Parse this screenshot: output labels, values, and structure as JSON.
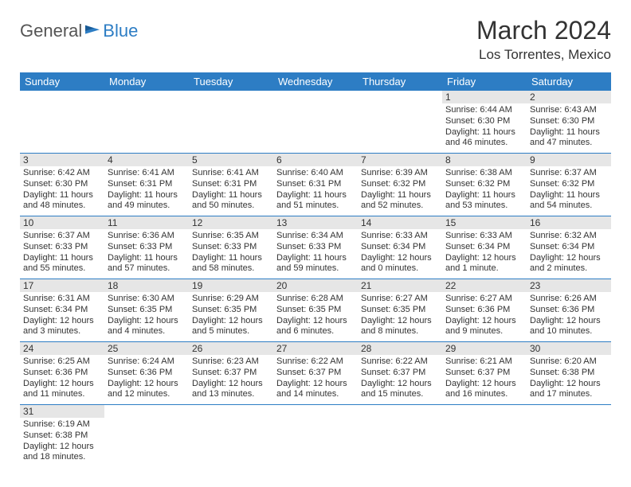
{
  "logo": {
    "part1": "General",
    "part2": "Blue"
  },
  "title": "March 2024",
  "location": "Los Torrentes, Mexico",
  "colors": {
    "header_bg": "#2d7dc4",
    "header_text": "#ffffff",
    "daynum_bg": "#e6e6e6",
    "row_border": "#2d7dc4",
    "text": "#333333",
    "background": "#ffffff"
  },
  "weekdays": [
    "Sunday",
    "Monday",
    "Tuesday",
    "Wednesday",
    "Thursday",
    "Friday",
    "Saturday"
  ],
  "weeks": [
    [
      null,
      null,
      null,
      null,
      null,
      {
        "d": "1",
        "sr": "Sunrise: 6:44 AM",
        "ss": "Sunset: 6:30 PM",
        "dl1": "Daylight: 11 hours",
        "dl2": "and 46 minutes."
      },
      {
        "d": "2",
        "sr": "Sunrise: 6:43 AM",
        "ss": "Sunset: 6:30 PM",
        "dl1": "Daylight: 11 hours",
        "dl2": "and 47 minutes."
      }
    ],
    [
      {
        "d": "3",
        "sr": "Sunrise: 6:42 AM",
        "ss": "Sunset: 6:30 PM",
        "dl1": "Daylight: 11 hours",
        "dl2": "and 48 minutes."
      },
      {
        "d": "4",
        "sr": "Sunrise: 6:41 AM",
        "ss": "Sunset: 6:31 PM",
        "dl1": "Daylight: 11 hours",
        "dl2": "and 49 minutes."
      },
      {
        "d": "5",
        "sr": "Sunrise: 6:41 AM",
        "ss": "Sunset: 6:31 PM",
        "dl1": "Daylight: 11 hours",
        "dl2": "and 50 minutes."
      },
      {
        "d": "6",
        "sr": "Sunrise: 6:40 AM",
        "ss": "Sunset: 6:31 PM",
        "dl1": "Daylight: 11 hours",
        "dl2": "and 51 minutes."
      },
      {
        "d": "7",
        "sr": "Sunrise: 6:39 AM",
        "ss": "Sunset: 6:32 PM",
        "dl1": "Daylight: 11 hours",
        "dl2": "and 52 minutes."
      },
      {
        "d": "8",
        "sr": "Sunrise: 6:38 AM",
        "ss": "Sunset: 6:32 PM",
        "dl1": "Daylight: 11 hours",
        "dl2": "and 53 minutes."
      },
      {
        "d": "9",
        "sr": "Sunrise: 6:37 AM",
        "ss": "Sunset: 6:32 PM",
        "dl1": "Daylight: 11 hours",
        "dl2": "and 54 minutes."
      }
    ],
    [
      {
        "d": "10",
        "sr": "Sunrise: 6:37 AM",
        "ss": "Sunset: 6:33 PM",
        "dl1": "Daylight: 11 hours",
        "dl2": "and 55 minutes."
      },
      {
        "d": "11",
        "sr": "Sunrise: 6:36 AM",
        "ss": "Sunset: 6:33 PM",
        "dl1": "Daylight: 11 hours",
        "dl2": "and 57 minutes."
      },
      {
        "d": "12",
        "sr": "Sunrise: 6:35 AM",
        "ss": "Sunset: 6:33 PM",
        "dl1": "Daylight: 11 hours",
        "dl2": "and 58 minutes."
      },
      {
        "d": "13",
        "sr": "Sunrise: 6:34 AM",
        "ss": "Sunset: 6:33 PM",
        "dl1": "Daylight: 11 hours",
        "dl2": "and 59 minutes."
      },
      {
        "d": "14",
        "sr": "Sunrise: 6:33 AM",
        "ss": "Sunset: 6:34 PM",
        "dl1": "Daylight: 12 hours",
        "dl2": "and 0 minutes."
      },
      {
        "d": "15",
        "sr": "Sunrise: 6:33 AM",
        "ss": "Sunset: 6:34 PM",
        "dl1": "Daylight: 12 hours",
        "dl2": "and 1 minute."
      },
      {
        "d": "16",
        "sr": "Sunrise: 6:32 AM",
        "ss": "Sunset: 6:34 PM",
        "dl1": "Daylight: 12 hours",
        "dl2": "and 2 minutes."
      }
    ],
    [
      {
        "d": "17",
        "sr": "Sunrise: 6:31 AM",
        "ss": "Sunset: 6:34 PM",
        "dl1": "Daylight: 12 hours",
        "dl2": "and 3 minutes."
      },
      {
        "d": "18",
        "sr": "Sunrise: 6:30 AM",
        "ss": "Sunset: 6:35 PM",
        "dl1": "Daylight: 12 hours",
        "dl2": "and 4 minutes."
      },
      {
        "d": "19",
        "sr": "Sunrise: 6:29 AM",
        "ss": "Sunset: 6:35 PM",
        "dl1": "Daylight: 12 hours",
        "dl2": "and 5 minutes."
      },
      {
        "d": "20",
        "sr": "Sunrise: 6:28 AM",
        "ss": "Sunset: 6:35 PM",
        "dl1": "Daylight: 12 hours",
        "dl2": "and 6 minutes."
      },
      {
        "d": "21",
        "sr": "Sunrise: 6:27 AM",
        "ss": "Sunset: 6:35 PM",
        "dl1": "Daylight: 12 hours",
        "dl2": "and 8 minutes."
      },
      {
        "d": "22",
        "sr": "Sunrise: 6:27 AM",
        "ss": "Sunset: 6:36 PM",
        "dl1": "Daylight: 12 hours",
        "dl2": "and 9 minutes."
      },
      {
        "d": "23",
        "sr": "Sunrise: 6:26 AM",
        "ss": "Sunset: 6:36 PM",
        "dl1": "Daylight: 12 hours",
        "dl2": "and 10 minutes."
      }
    ],
    [
      {
        "d": "24",
        "sr": "Sunrise: 6:25 AM",
        "ss": "Sunset: 6:36 PM",
        "dl1": "Daylight: 12 hours",
        "dl2": "and 11 minutes."
      },
      {
        "d": "25",
        "sr": "Sunrise: 6:24 AM",
        "ss": "Sunset: 6:36 PM",
        "dl1": "Daylight: 12 hours",
        "dl2": "and 12 minutes."
      },
      {
        "d": "26",
        "sr": "Sunrise: 6:23 AM",
        "ss": "Sunset: 6:37 PM",
        "dl1": "Daylight: 12 hours",
        "dl2": "and 13 minutes."
      },
      {
        "d": "27",
        "sr": "Sunrise: 6:22 AM",
        "ss": "Sunset: 6:37 PM",
        "dl1": "Daylight: 12 hours",
        "dl2": "and 14 minutes."
      },
      {
        "d": "28",
        "sr": "Sunrise: 6:22 AM",
        "ss": "Sunset: 6:37 PM",
        "dl1": "Daylight: 12 hours",
        "dl2": "and 15 minutes."
      },
      {
        "d": "29",
        "sr": "Sunrise: 6:21 AM",
        "ss": "Sunset: 6:37 PM",
        "dl1": "Daylight: 12 hours",
        "dl2": "and 16 minutes."
      },
      {
        "d": "30",
        "sr": "Sunrise: 6:20 AM",
        "ss": "Sunset: 6:38 PM",
        "dl1": "Daylight: 12 hours",
        "dl2": "and 17 minutes."
      }
    ],
    [
      {
        "d": "31",
        "sr": "Sunrise: 6:19 AM",
        "ss": "Sunset: 6:38 PM",
        "dl1": "Daylight: 12 hours",
        "dl2": "and 18 minutes."
      },
      null,
      null,
      null,
      null,
      null,
      null
    ]
  ]
}
